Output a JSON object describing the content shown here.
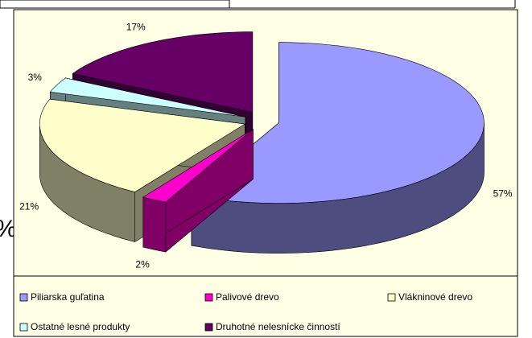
{
  "left_fragment": "%",
  "chart_data": {
    "type": "pie3d",
    "categories": [
      "Piliarska guľatina",
      "Palivové drevo",
      "Vlákninové drevo",
      "Ostatné lesné produkty",
      "Druhotné nelesnícke činností"
    ],
    "values": [
      57,
      2,
      21,
      3,
      17
    ],
    "value_labels": [
      "57%",
      "2%",
      "21%",
      "3%",
      "17%"
    ],
    "colors": [
      "#9999ff",
      "#ff00cc",
      "#ffffcc",
      "#ccffff",
      "#660066"
    ],
    "legend": "bottom"
  }
}
